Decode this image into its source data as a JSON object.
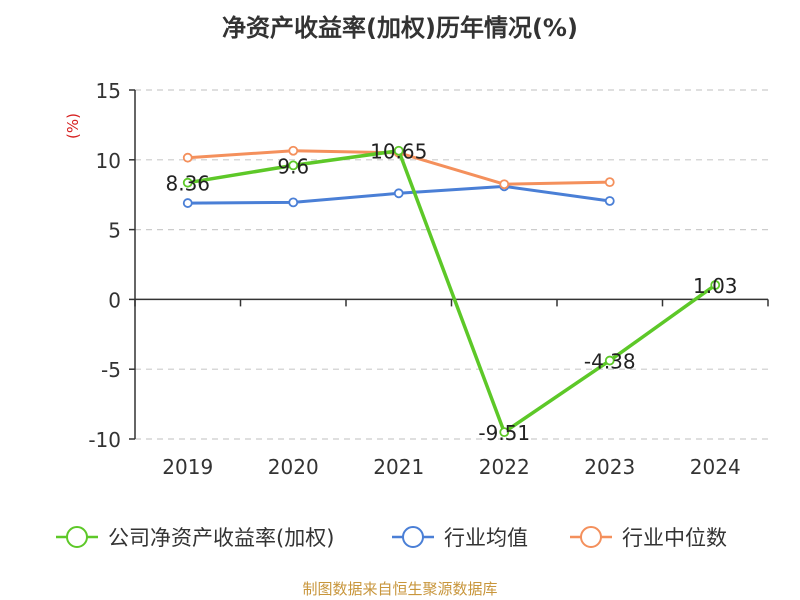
{
  "chart_data": {
    "type": "line",
    "title": "净资产收益率(加权)历年情况(%)",
    "ylabel": "(%)",
    "xlabel": "",
    "categories": [
      "2019",
      "2020",
      "2021",
      "2022",
      "2023",
      "2024"
    ],
    "ylim": [
      -10,
      15
    ],
    "yticks": [
      15,
      10,
      5,
      0,
      -5,
      -10
    ],
    "grid": true,
    "legend_position": "bottom",
    "series": [
      {
        "name": "公司净资产收益率(加权)",
        "color": "#5dc828",
        "values": [
          8.36,
          9.6,
          10.65,
          -9.51,
          -4.38,
          1.03
        ],
        "labels": [
          "8.36",
          "9.6",
          "10.65",
          "-9.51",
          "-4.38",
          "1.03"
        ]
      },
      {
        "name": "行业均值",
        "color": "#4a7fd6",
        "values": [
          6.9,
          6.95,
          7.6,
          8.1,
          7.05,
          null
        ]
      },
      {
        "name": "行业中位数",
        "color": "#f4905c",
        "values": [
          10.15,
          10.65,
          10.5,
          8.25,
          8.4,
          null
        ]
      }
    ]
  },
  "source": "制图数据来自恒生聚源数据库",
  "ylabel_color": "#d62020"
}
